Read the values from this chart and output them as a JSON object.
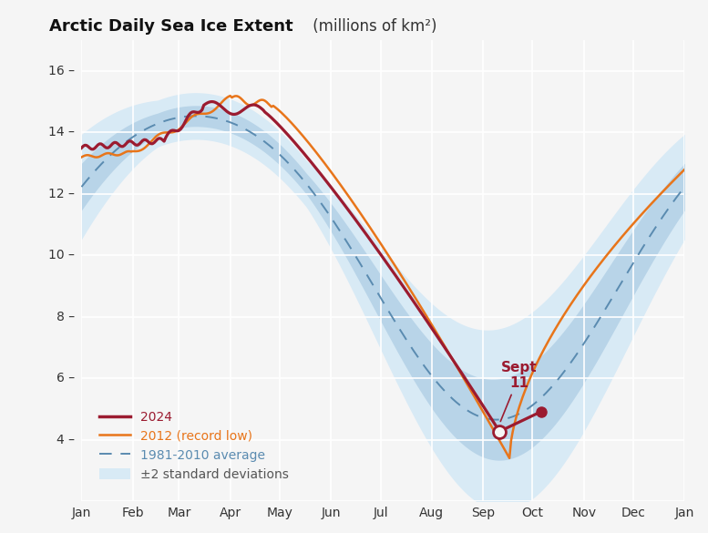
{
  "title_bold": "Arctic Daily Sea Ice Extent",
  "title_normal": " (millions of km²)",
  "background_color": "#f5f5f5",
  "plot_background": "#f5f5f5",
  "ylim": [
    2,
    17
  ],
  "yticks": [
    2,
    4,
    6,
    8,
    10,
    12,
    14,
    16
  ],
  "months": [
    "Jan",
    "Feb",
    "Mar",
    "Apr",
    "May",
    "Jun",
    "Jul",
    "Aug",
    "Sep",
    "Oct",
    "Nov",
    "Dec",
    "Jan"
  ],
  "color_2024": "#9b1b30",
  "color_2012": "#e8751a",
  "color_avg": "#5a8bb0",
  "color_std1": "#b8d4e8",
  "color_std2": "#d8eaf5",
  "annotation_text_line1": "Sept",
  "annotation_text_line2": "11",
  "annotation_color": "#9b1b30",
  "sept11_day": 253,
  "sept11_val": 4.28,
  "oct_day": 278,
  "oct_val": 4.92,
  "month_days": [
    0,
    31,
    59,
    90,
    120,
    151,
    181,
    212,
    243,
    273,
    304,
    334,
    365
  ]
}
